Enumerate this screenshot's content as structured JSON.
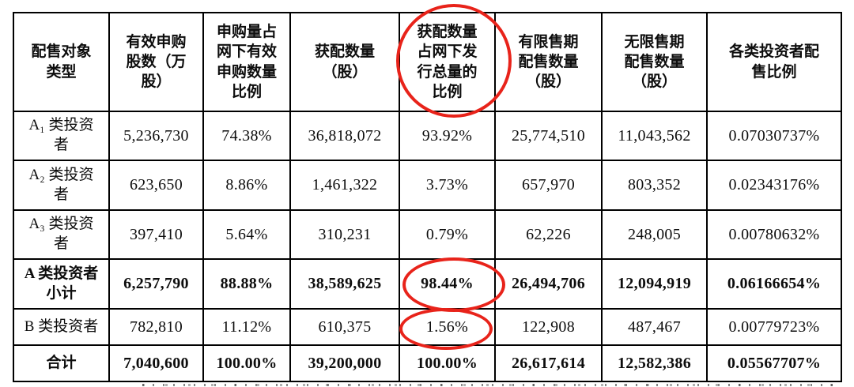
{
  "annotation_color": "#e8231a",
  "table": {
    "columns": [
      "配售对象\n类型",
      "有效申购\n股数（万\n股）",
      "申购量占\n网下有效\n申购数量\n比例",
      "获配数量\n（股）",
      "获配数量\n占网下发\n行总量的\n比例",
      "有限售期\n配售数量\n（股）",
      "无限售期\n配售数量\n（股）",
      "各类投资者配\n售比例"
    ],
    "rows": [
      {
        "label": "A₁ 类投资\n者",
        "bold": false,
        "cells": [
          "5,236,730",
          "74.38%",
          "36,818,072",
          "93.92%",
          "25,774,510",
          "11,043,562",
          "0.07030737%"
        ]
      },
      {
        "label": "A₂ 类投资\n者",
        "bold": false,
        "cells": [
          "623,650",
          "8.86%",
          "1,461,322",
          "3.73%",
          "657,970",
          "803,352",
          "0.02343176%"
        ]
      },
      {
        "label": "A₃ 类投资\n者",
        "bold": false,
        "cells": [
          "397,410",
          "5.64%",
          "310,231",
          "0.79%",
          "62,226",
          "248,005",
          "0.00780632%"
        ]
      },
      {
        "label": "A 类投资者\n小计",
        "bold": true,
        "cells": [
          "6,257,790",
          "88.88%",
          "38,589,625",
          "98.44%",
          "26,494,706",
          "12,094,919",
          "0.06166654%"
        ]
      },
      {
        "label": "B 类投资者",
        "bold": false,
        "cells": [
          "782,810",
          "11.12%",
          "610,375",
          "1.56%",
          "122,908",
          "487,467",
          "0.00779723%"
        ]
      },
      {
        "label": "合计",
        "bold": true,
        "cells": [
          "7,040,600",
          "100.00%",
          "39,200,000",
          "100.00%",
          "26,617,614",
          "12,582,386",
          "0.05567707%"
        ]
      }
    ]
  },
  "annotations": {
    "circled_header": "获配数量占网下发行总量的比例",
    "circled_values": [
      "98.44%",
      "1.56%"
    ]
  }
}
